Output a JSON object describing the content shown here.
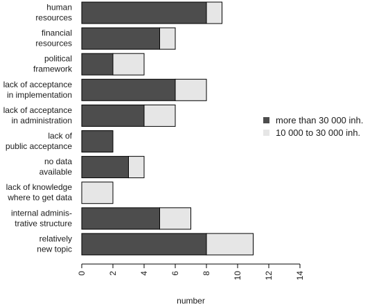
{
  "chart_data": {
    "type": "bar",
    "orientation": "horizontal",
    "stacked": true,
    "categories": [
      [
        "human",
        "resources"
      ],
      [
        "financial",
        "resources"
      ],
      [
        "political",
        "framework"
      ],
      [
        "lack of acceptance",
        "in implementation"
      ],
      [
        "lack of acceptance",
        "in administration"
      ],
      [
        "lack of",
        "public acceptance"
      ],
      [
        "no data",
        "available"
      ],
      [
        "lack of knowledge",
        "where to get data"
      ],
      [
        "internal adminis-",
        "trative structure"
      ],
      [
        "relatively",
        "new topic"
      ]
    ],
    "series": [
      {
        "name": "more than 30 000 inh.",
        "color": "#4d4d4d",
        "values": [
          8,
          5,
          2,
          6,
          4,
          2,
          3,
          0,
          5,
          8
        ]
      },
      {
        "name": "10 000 to 30 000 inh.",
        "color": "#e6e6e6",
        "values": [
          1,
          1,
          2,
          2,
          2,
          0,
          1,
          2,
          2,
          3
        ]
      }
    ],
    "xlabel": "number",
    "xlim": [
      0,
      14
    ],
    "xticks": [
      0,
      2,
      4,
      6,
      8,
      10,
      12,
      14
    ],
    "tick_label_rotation": "vertical",
    "grid": false,
    "legend_placement": "right"
  }
}
